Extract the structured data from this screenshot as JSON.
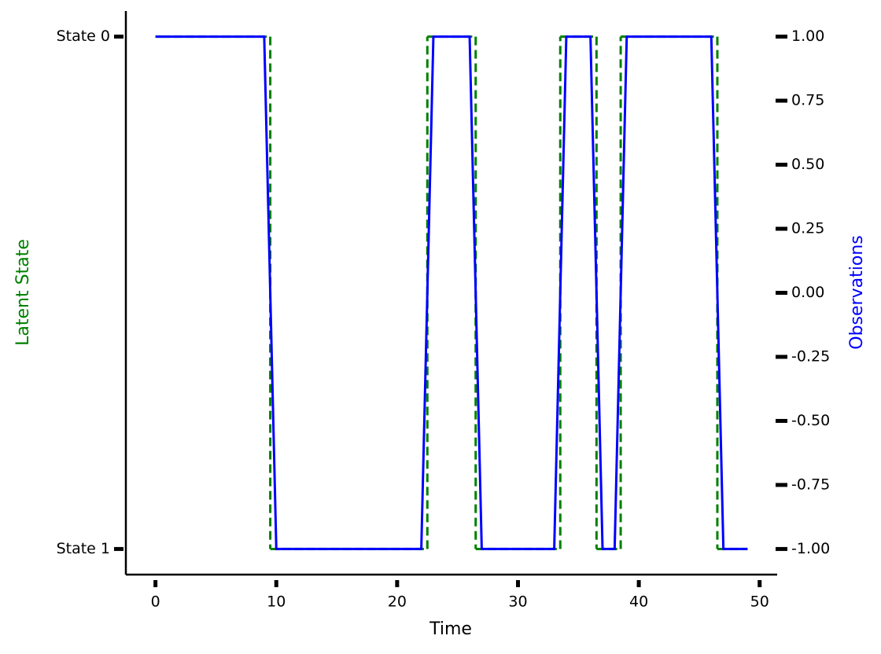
{
  "chart_data": {
    "type": "line",
    "xlabel": "Time",
    "ylabel": "Latent State",
    "y2label": "Observations",
    "x": [
      0,
      1,
      2,
      3,
      4,
      5,
      6,
      7,
      8,
      9,
      10,
      11,
      12,
      13,
      14,
      15,
      16,
      17,
      18,
      19,
      20,
      21,
      22,
      23,
      24,
      25,
      26,
      27,
      28,
      29,
      30,
      31,
      32,
      33,
      34,
      35,
      36,
      37,
      38,
      39,
      40,
      41,
      42,
      43,
      44,
      45,
      46,
      47,
      48,
      49
    ],
    "series": [
      {
        "color": "#008000",
        "linestyle": "dashed",
        "drawstyle": "steps-mid",
        "axis": "y",
        "values": [
          0,
          0,
          0,
          0,
          0,
          0,
          0,
          0,
          0,
          0,
          1,
          1,
          1,
          1,
          1,
          1,
          1,
          1,
          1,
          1,
          1,
          1,
          1,
          0,
          0,
          0,
          0,
          1,
          1,
          1,
          1,
          1,
          1,
          1,
          0,
          0,
          0,
          1,
          1,
          0,
          0,
          0,
          0,
          0,
          0,
          0,
          0,
          1,
          1,
          1
        ]
      },
      {
        "color": "#0000ff",
        "linestyle": "solid",
        "axis": "y2",
        "values": [
          1,
          1,
          1,
          1,
          1,
          1,
          1,
          1,
          1,
          1,
          -1,
          -1,
          -1,
          -1,
          -1,
          -1,
          -1,
          -1,
          -1,
          -1,
          -1,
          -1,
          -1,
          1,
          1,
          1,
          1,
          -1,
          -1,
          -1,
          -1,
          -1,
          -1,
          -1,
          1,
          1,
          1,
          -1,
          -1,
          1,
          1,
          1,
          1,
          1,
          1,
          1,
          1,
          -1,
          -1,
          -1
        ]
      }
    ],
    "xlim": [
      -2.45,
      51.45
    ],
    "xticks": [
      0,
      10,
      20,
      30,
      40,
      50
    ],
    "ylim": [
      1.05,
      -0.05
    ],
    "yticks": [
      {
        "value": 0,
        "label": "State 0"
      },
      {
        "value": 1,
        "label": "State 1"
      }
    ],
    "y2lim": [
      -1.1,
      1.1
    ],
    "y2ticks": [
      {
        "value": -1,
        "label": "-1.00"
      },
      {
        "value": -0.75,
        "label": "-0.75"
      },
      {
        "value": -0.5,
        "label": "-0.50"
      },
      {
        "value": -0.25,
        "label": "-0.25"
      },
      {
        "value": 0,
        "label": "0.00"
      },
      {
        "value": 0.25,
        "label": "0.25"
      },
      {
        "value": 0.5,
        "label": "0.50"
      },
      {
        "value": 0.75,
        "label": "0.75"
      },
      {
        "value": 1,
        "label": "1.00"
      }
    ],
    "grid": false
  }
}
